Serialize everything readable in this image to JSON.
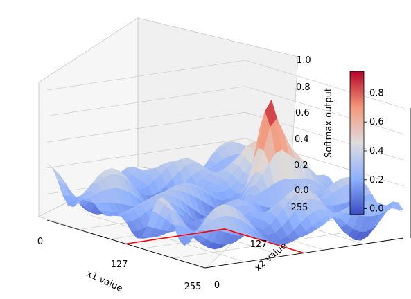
{
  "chart_data": {
    "type": "surface3d",
    "colormap": "coolwarm",
    "grid": true,
    "xlabel": "x1 value",
    "ylabel": "x2 value",
    "zlabel": "Softmax output",
    "x_ticks": [
      "0",
      "127",
      "255"
    ],
    "y_ticks": [
      "0",
      "127",
      "255"
    ],
    "z_ticks": [
      "0.0",
      "0.2",
      "0.4",
      "0.6",
      "0.8",
      "1.0"
    ],
    "xlim": [
      0,
      255
    ],
    "ylim": [
      0,
      255
    ],
    "zlim": [
      0,
      1
    ],
    "peak": {
      "x1": 127,
      "x2": 185,
      "value": 0.95
    },
    "colorbar": {
      "ticks": [
        "0.0",
        "0.2",
        "0.4",
        "0.6",
        "0.8"
      ],
      "range": [
        -0.04,
        0.95
      ]
    },
    "red_lines": [
      {
        "from": {
          "x1": 127,
          "x2": 0
        },
        "to": {
          "x1": 127,
          "x2": 127
        }
      },
      {
        "from": {
          "x1": 127,
          "x2": 127
        },
        "to": {
          "x1": 255,
          "x2": 127
        }
      }
    ]
  }
}
